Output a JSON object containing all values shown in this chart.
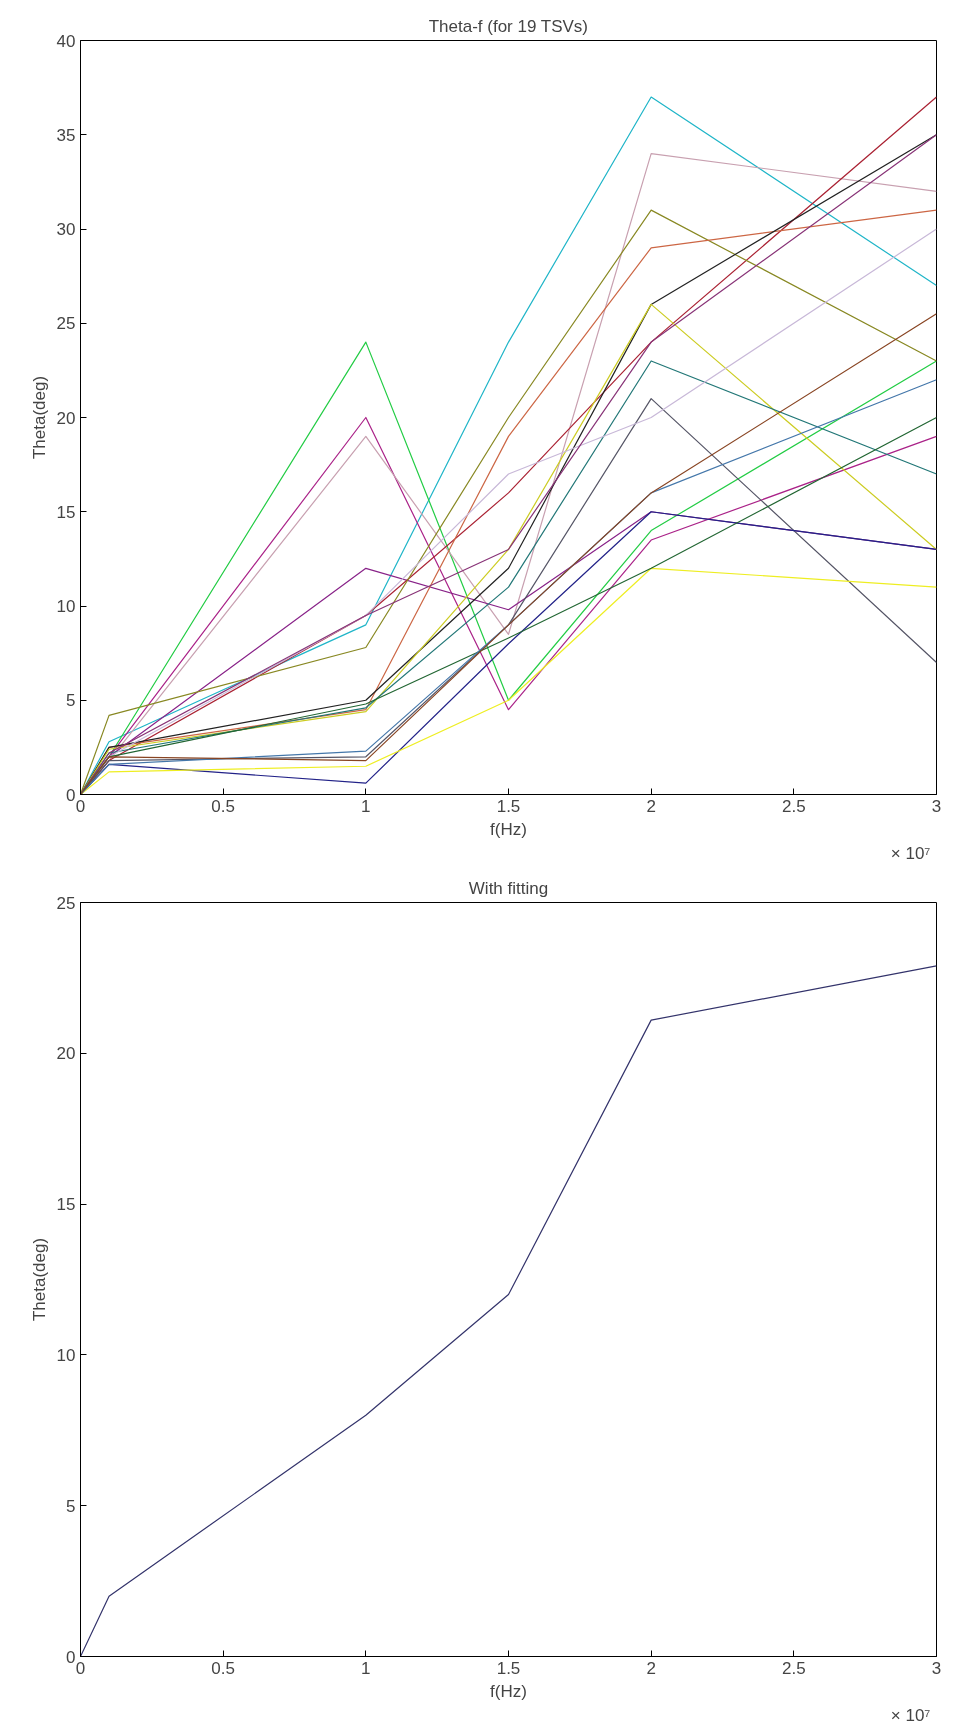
{
  "chart_data": [
    {
      "type": "line",
      "title": "Theta-f (for 19 TSVs)",
      "xlabel": "f(Hz)",
      "ylabel": "Theta(deg)",
      "annotations": [
        "× 10⁷"
      ],
      "grid": false,
      "marker": "none",
      "line_style": "solid",
      "x": [
        0,
        0.1,
        1,
        1.5,
        2,
        3
      ],
      "xlim": [
        0,
        3
      ],
      "xticks": [
        0,
        0.5,
        1,
        1.5,
        2,
        2.5,
        3
      ],
      "ylim": [
        0,
        40
      ],
      "yticks": [
        0,
        5,
        10,
        15,
        20,
        25,
        30,
        35,
        40
      ],
      "series": [
        {
          "color": "#1fb5c8",
          "values": [
            0,
            2.8,
            9,
            24,
            37,
            27
          ]
        },
        {
          "color": "#22cc44",
          "values": [
            0,
            2,
            24,
            5,
            14,
            23
          ]
        },
        {
          "color": "#aa2288",
          "values": [
            0,
            2,
            20,
            4.5,
            13.5,
            19
          ]
        },
        {
          "color": "#c8a0b0",
          "values": [
            0,
            1.8,
            19,
            8.5,
            34,
            32
          ]
        },
        {
          "color": "#882288",
          "values": [
            0,
            2,
            12,
            9.8,
            15,
            13
          ]
        },
        {
          "color": "#aa2233",
          "values": [
            0,
            1.8,
            9.5,
            16,
            24,
            37
          ]
        },
        {
          "color": "#888822",
          "values": [
            0,
            4.2,
            7.8,
            20,
            31,
            23
          ]
        },
        {
          "color": "#cc6644",
          "values": [
            0,
            2.5,
            4.5,
            19,
            29,
            31
          ]
        },
        {
          "color": "#222222",
          "values": [
            0,
            2.5,
            5,
            12,
            26,
            35
          ]
        },
        {
          "color": "#cccc22",
          "values": [
            0,
            2.4,
            4.4,
            13,
            26,
            13
          ]
        },
        {
          "color": "#227777",
          "values": [
            0,
            2.2,
            4.6,
            11,
            23,
            17
          ]
        },
        {
          "color": "#555566",
          "values": [
            0,
            1.8,
            2,
            9,
            21,
            7
          ]
        },
        {
          "color": "#c8b8d8",
          "values": [
            0,
            2,
            9.5,
            17,
            20,
            30
          ]
        },
        {
          "color": "#883377",
          "values": [
            0,
            2.2,
            9.5,
            13,
            24,
            35
          ]
        },
        {
          "color": "#222288",
          "values": [
            0,
            1.6,
            0.6,
            8,
            15,
            13
          ]
        },
        {
          "color": "#eeee22",
          "values": [
            0,
            1.2,
            1.5,
            5,
            12,
            11
          ]
        },
        {
          "color": "#226633",
          "values": [
            0,
            2,
            4.8,
            8.3,
            12,
            20
          ]
        },
        {
          "color": "#4477aa",
          "values": [
            0,
            1.6,
            2.3,
            9,
            16,
            22
          ]
        },
        {
          "color": "#884422",
          "values": [
            0,
            2,
            1.8,
            9,
            16,
            25.5
          ]
        }
      ]
    },
    {
      "type": "line",
      "title": "With fitting",
      "xlabel": "f(Hz)",
      "ylabel": "Theta(deg)",
      "annotations": [
        "× 10⁷"
      ],
      "grid": false,
      "marker": "none",
      "line_style": "solid",
      "x": [
        0,
        0.1,
        1,
        1.5,
        2,
        3
      ],
      "xlim": [
        0,
        3
      ],
      "xticks": [
        0,
        0.5,
        1,
        1.5,
        2,
        2.5,
        3
      ],
      "ylim": [
        0,
        25
      ],
      "yticks": [
        0,
        5,
        10,
        15,
        20,
        25
      ],
      "series": [
        {
          "color": "#33336b",
          "values": [
            0,
            2,
            8,
            12,
            21.1,
            22.9
          ]
        }
      ]
    }
  ]
}
